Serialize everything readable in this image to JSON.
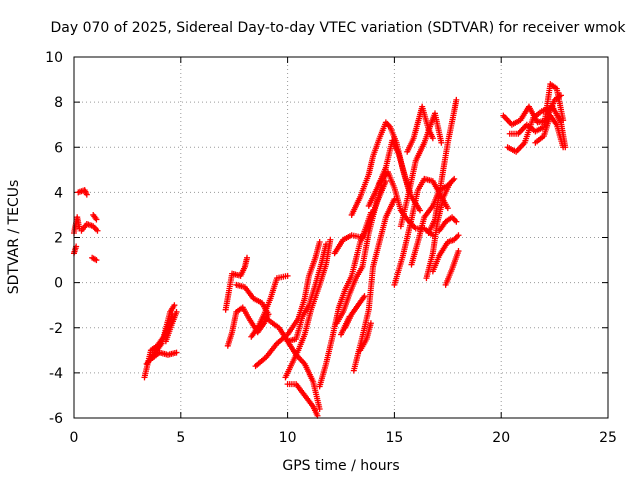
{
  "chart_data": {
    "type": "scatter",
    "title": "Day 070 of 2025, Sidereal Day-to-day VTEC variation (SDTVAR) for receiver wmok",
    "xlabel": "GPS time / hours",
    "ylabel": "SDTVAR / TECUs",
    "xlim": [
      0,
      25
    ],
    "ylim": [
      -6,
      10
    ],
    "xticks": [
      "0",
      "5",
      "10",
      "15",
      "20",
      "25"
    ],
    "yticks": [
      "-6",
      "-4",
      "-2",
      "0",
      "2",
      "4",
      "6",
      "8",
      "10"
    ],
    "grid": true,
    "marker": "plus",
    "color": "#ff0000",
    "series": [
      {
        "tracks": [
          [
            [
              0.0,
              2.2
            ],
            [
              0.15,
              2.9
            ],
            [
              0.25,
              2.4
            ]
          ],
          [
            [
              0.2,
              4.0
            ],
            [
              0.5,
              4.1
            ],
            [
              0.6,
              3.9
            ]
          ],
          [
            [
              0.35,
              2.3
            ],
            [
              0.6,
              2.6
            ],
            [
              0.9,
              2.5
            ],
            [
              1.1,
              2.3
            ]
          ],
          [
            [
              0.0,
              1.3
            ],
            [
              0.1,
              1.6
            ]
          ],
          [
            [
              0.9,
              3.0
            ],
            [
              1.05,
              2.8
            ]
          ],
          [
            [
              0.85,
              1.1
            ],
            [
              1.05,
              1.0
            ]
          ],
          [
            [
              3.3,
              -4.2
            ],
            [
              3.6,
              -3.0
            ],
            [
              3.9,
              -2.8
            ],
            [
              4.2,
              -2.4
            ],
            [
              4.5,
              -1.3
            ],
            [
              4.7,
              -1.0
            ]
          ],
          [
            [
              3.4,
              -3.6
            ],
            [
              3.8,
              -3.1
            ],
            [
              4.1,
              -2.7
            ],
            [
              4.6,
              -1.4
            ]
          ],
          [
            [
              3.6,
              -3.4
            ],
            [
              4.0,
              -3.1
            ],
            [
              4.4,
              -3.2
            ],
            [
              4.8,
              -3.1
            ]
          ],
          [
            [
              4.3,
              -2.6
            ],
            [
              4.6,
              -1.8
            ],
            [
              4.8,
              -1.3
            ]
          ],
          [
            [
              7.1,
              -1.2
            ],
            [
              7.4,
              0.4
            ],
            [
              7.8,
              0.3
            ],
            [
              8.0,
              0.7
            ],
            [
              8.1,
              1.1
            ]
          ],
          [
            [
              7.2,
              -2.8
            ],
            [
              7.4,
              -2.2
            ],
            [
              7.6,
              -1.3
            ],
            [
              7.9,
              -1.1
            ],
            [
              8.2,
              -1.6
            ],
            [
              8.6,
              -2.2
            ],
            [
              8.9,
              -1.8
            ],
            [
              9.1,
              -1.4
            ]
          ],
          [
            [
              7.6,
              -0.1
            ],
            [
              8.0,
              -0.2
            ],
            [
              8.4,
              -0.7
            ],
            [
              8.8,
              -0.9
            ],
            [
              9.1,
              -1.4
            ]
          ],
          [
            [
              8.3,
              -2.4
            ],
            [
              8.6,
              -2.0
            ],
            [
              8.9,
              -1.4
            ],
            [
              9.2,
              -0.7
            ],
            [
              9.5,
              0.2
            ],
            [
              10.0,
              0.3
            ]
          ],
          [
            [
              8.5,
              -3.7
            ],
            [
              9.0,
              -3.3
            ],
            [
              9.5,
              -2.7
            ],
            [
              10.0,
              -2.3
            ],
            [
              10.5,
              -1.6
            ],
            [
              10.8,
              -0.7
            ],
            [
              11.0,
              0.3
            ],
            [
              11.3,
              1.1
            ],
            [
              11.5,
              1.8
            ]
          ],
          [
            [
              8.9,
              -1.5
            ],
            [
              9.3,
              -1.8
            ],
            [
              9.6,
              -2.0
            ],
            [
              10.0,
              -2.6
            ],
            [
              10.4,
              -3.2
            ],
            [
              10.8,
              -3.6
            ],
            [
              11.2,
              -4.4
            ],
            [
              11.5,
              -5.6
            ]
          ],
          [
            [
              9.9,
              -4.2
            ],
            [
              10.2,
              -3.6
            ],
            [
              10.5,
              -3.0
            ],
            [
              10.8,
              -2.3
            ],
            [
              11.1,
              -1.2
            ],
            [
              11.5,
              -0.1
            ],
            [
              11.8,
              0.8
            ],
            [
              12.0,
              1.9
            ]
          ],
          [
            [
              10.0,
              -4.5
            ],
            [
              10.4,
              -4.5
            ],
            [
              10.8,
              -5.0
            ],
            [
              11.2,
              -5.5
            ],
            [
              11.4,
              -5.9
            ]
          ],
          [
            [
              10.0,
              -2.6
            ],
            [
              10.4,
              -2.5
            ],
            [
              10.7,
              -1.5
            ],
            [
              11.0,
              -1.0
            ],
            [
              11.3,
              -0.1
            ],
            [
              11.6,
              0.9
            ],
            [
              11.8,
              1.7
            ]
          ],
          [
            [
              11.5,
              -4.6
            ],
            [
              11.8,
              -3.6
            ],
            [
              12.1,
              -2.4
            ],
            [
              12.4,
              -1.1
            ],
            [
              12.7,
              -0.3
            ],
            [
              13.0,
              0.3
            ],
            [
              13.4,
              1.8
            ],
            [
              13.8,
              2.6
            ],
            [
              14.2,
              3.6
            ],
            [
              14.6,
              4.5
            ]
          ],
          [
            [
              12.2,
              1.3
            ],
            [
              12.6,
              1.9
            ],
            [
              13.0,
              2.1
            ],
            [
              13.5,
              2.0
            ],
            [
              13.9,
              3.1
            ]
          ],
          [
            [
              12.3,
              -1.8
            ],
            [
              12.6,
              -1.3
            ],
            [
              12.9,
              -0.5
            ],
            [
              13.2,
              0.2
            ],
            [
              13.5,
              0.7
            ],
            [
              13.8,
              2.2
            ],
            [
              14.1,
              3.3
            ],
            [
              14.4,
              4.3
            ]
          ],
          [
            [
              12.5,
              -2.3
            ],
            [
              12.7,
              -1.9
            ],
            [
              12.9,
              -1.5
            ]
          ],
          [
            [
              12.7,
              -2.0
            ],
            [
              13.0,
              -1.4
            ],
            [
              13.3,
              -1.0
            ],
            [
              13.6,
              -0.6
            ]
          ],
          [
            [
              13.1,
              -3.9
            ],
            [
              13.5,
              -2.4
            ],
            [
              13.8,
              -1.2
            ],
            [
              14.0,
              0.7
            ],
            [
              14.3,
              1.8
            ],
            [
              14.6,
              2.9
            ],
            [
              15.0,
              3.7
            ]
          ],
          [
            [
              13.4,
              -3.0
            ],
            [
              13.7,
              -2.5
            ],
            [
              13.9,
              -1.8
            ]
          ],
          [
            [
              13.0,
              3.0
            ],
            [
              13.4,
              3.8
            ],
            [
              13.8,
              4.8
            ],
            [
              14.0,
              5.6
            ],
            [
              14.3,
              6.4
            ],
            [
              14.6,
              7.1
            ],
            [
              14.8,
              6.9
            ],
            [
              15.1,
              6.2
            ],
            [
              15.4,
              5.0
            ],
            [
              15.7,
              4.0
            ]
          ],
          [
            [
              13.8,
              3.4
            ],
            [
              14.2,
              4.2
            ],
            [
              14.6,
              5.1
            ],
            [
              14.9,
              6.3
            ],
            [
              15.2,
              5.7
            ],
            [
              15.5,
              4.7
            ],
            [
              15.8,
              3.8
            ],
            [
              16.2,
              3.2
            ]
          ],
          [
            [
              14.3,
              4.4
            ],
            [
              14.7,
              4.9
            ],
            [
              15.0,
              4.2
            ],
            [
              15.3,
              3.2
            ],
            [
              15.6,
              2.8
            ],
            [
              16.0,
              2.4
            ],
            [
              16.4,
              2.4
            ],
            [
              16.8,
              2.1
            ]
          ],
          [
            [
              15.0,
              -0.1
            ],
            [
              15.4,
              1.2
            ],
            [
              15.8,
              2.8
            ],
            [
              16.1,
              4.1
            ],
            [
              16.4,
              4.6
            ],
            [
              16.8,
              4.5
            ],
            [
              17.2,
              3.8
            ],
            [
              17.5,
              3.3
            ]
          ],
          [
            [
              15.3,
              2.5
            ],
            [
              15.7,
              4.1
            ],
            [
              16.0,
              5.4
            ],
            [
              16.4,
              6.2
            ],
            [
              16.7,
              7.0
            ],
            [
              16.9,
              7.5
            ],
            [
              17.2,
              6.2
            ]
          ],
          [
            [
              15.6,
              5.8
            ],
            [
              15.9,
              6.4
            ],
            [
              16.1,
              7.1
            ],
            [
              16.3,
              7.8
            ],
            [
              16.6,
              6.8
            ],
            [
              16.8,
              6.4
            ]
          ],
          [
            [
              15.8,
              0.8
            ],
            [
              16.1,
              1.8
            ],
            [
              16.4,
              2.9
            ],
            [
              16.8,
              3.4
            ],
            [
              17.1,
              4.1
            ],
            [
              17.5,
              4.3
            ],
            [
              17.8,
              4.6
            ]
          ],
          [
            [
              16.5,
              0.2
            ],
            [
              16.8,
              1.3
            ],
            [
              17.0,
              2.6
            ],
            [
              17.3,
              3.8
            ],
            [
              17.6,
              4.4
            ]
          ],
          [
            [
              16.6,
              2.2
            ],
            [
              16.9,
              2.8
            ],
            [
              17.2,
              4.5
            ],
            [
              17.5,
              6.2
            ],
            [
              17.8,
              7.6
            ],
            [
              17.9,
              8.1
            ]
          ],
          [
            [
              17.1,
              2.3
            ],
            [
              17.4,
              2.7
            ],
            [
              17.7,
              2.9
            ],
            [
              17.9,
              2.7
            ]
          ],
          [
            [
              16.8,
              0.5
            ],
            [
              17.1,
              1.2
            ],
            [
              17.5,
              1.8
            ],
            [
              17.8,
              1.9
            ],
            [
              18.0,
              2.1
            ]
          ],
          [
            [
              17.4,
              -0.1
            ],
            [
              17.7,
              0.6
            ],
            [
              18.0,
              1.4
            ]
          ],
          [
            [
              20.3,
              6.0
            ],
            [
              20.7,
              5.8
            ],
            [
              21.1,
              6.2
            ],
            [
              21.5,
              7.3
            ],
            [
              21.9,
              7.6
            ],
            [
              22.4,
              7.8
            ],
            [
              22.8,
              7.1
            ],
            [
              23.0,
              6.0
            ]
          ],
          [
            [
              20.1,
              7.4
            ],
            [
              20.5,
              7.0
            ],
            [
              20.9,
              7.2
            ],
            [
              21.3,
              7.8
            ],
            [
              21.7,
              7.1
            ],
            [
              22.1,
              7.2
            ],
            [
              22.5,
              8.1
            ],
            [
              22.8,
              8.3
            ]
          ],
          [
            [
              20.4,
              6.6
            ],
            [
              20.8,
              6.6
            ],
            [
              21.2,
              7.0
            ],
            [
              21.6,
              6.7
            ],
            [
              22.0,
              6.9
            ],
            [
              22.3,
              8.8
            ],
            [
              22.6,
              8.6
            ],
            [
              22.9,
              7.2
            ]
          ],
          [
            [
              21.6,
              6.2
            ],
            [
              22.0,
              6.5
            ],
            [
              22.3,
              7.4
            ],
            [
              22.6,
              7.0
            ],
            [
              22.9,
              6.0
            ]
          ]
        ]
      }
    ]
  }
}
